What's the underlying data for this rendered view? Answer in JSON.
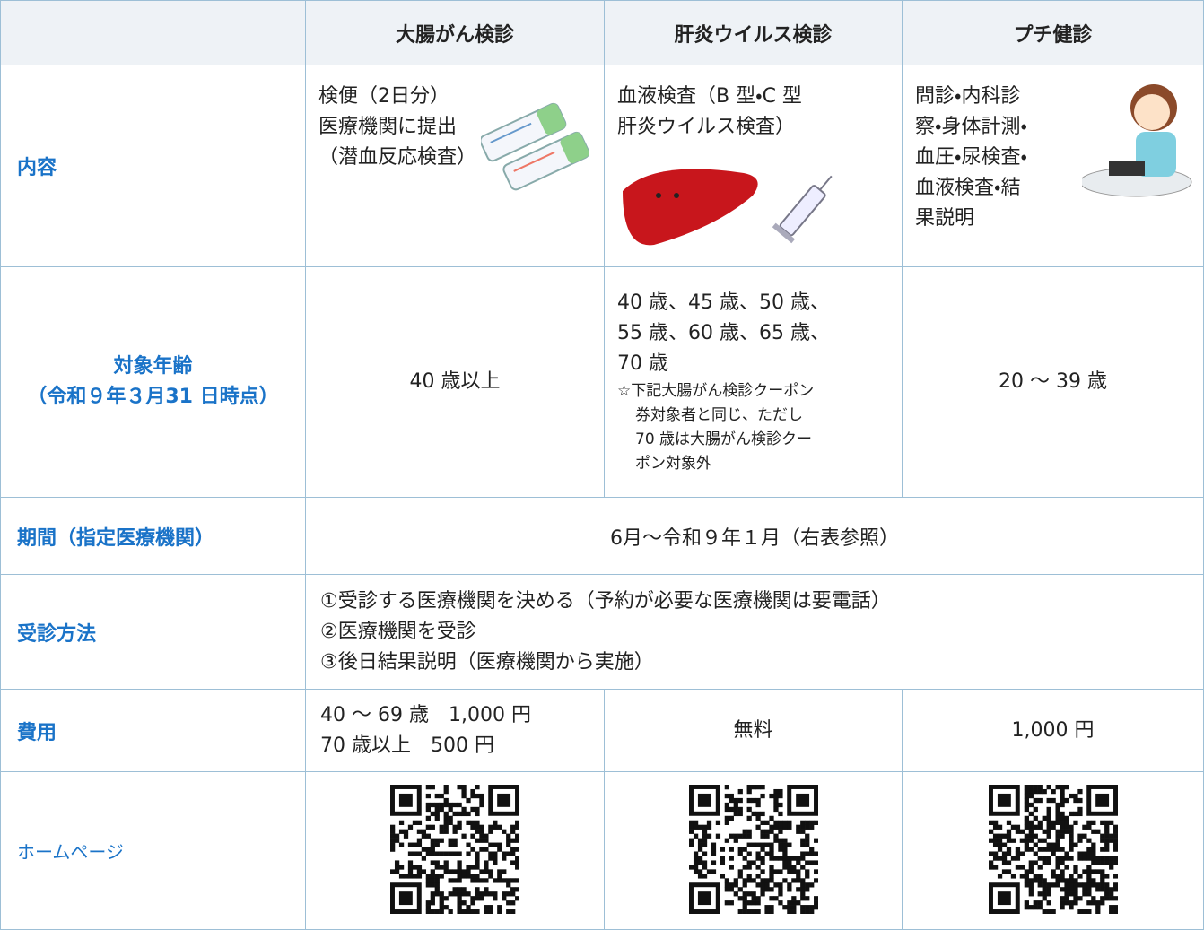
{
  "header": {
    "columns": [
      "大腸がん検診",
      "肝炎ウイルス検診",
      "プチ健診"
    ]
  },
  "rows": {
    "content": {
      "label": "内容",
      "cells": [
        [
          "検便（2日分）",
          "医療機関に提出",
          "（潜血反応検査）"
        ],
        [
          "血液検査（B 型・C 型",
          "肝炎ウイルス検査）"
        ],
        [
          "問診・内科診",
          "察・身体計測・",
          "血圧・尿検査・",
          "血液検査・結",
          "果説明"
        ]
      ]
    },
    "age": {
      "label": [
        "対象年齢",
        "（令和９年３月31 日時点）"
      ],
      "cells": [
        [
          "40 歳以上"
        ],
        [
          "40 歳、45 歳、50 歳、",
          "55 歳、60 歳、65 歳、",
          "70 歳"
        ],
        [
          "20 ～ 39 歳"
        ]
      ],
      "note": [
        "☆下記大腸がん検診クーポン",
        "券対象者と同じ、ただし",
        "70 歳は大腸がん検診クー",
        "ポン対象外"
      ]
    },
    "period": {
      "label": "期間（指定医療機関）",
      "value": "6月～令和９年１月（右表参照）"
    },
    "method": {
      "label": "受診方法",
      "lines": [
        "①受診する医療機関を決める（予約が必要な医療機関は要電話）",
        "②医療機関を受診",
        "③後日結果説明（医療機関から実施）"
      ]
    },
    "cost": {
      "label": "費用",
      "cells": [
        [
          "40 ～ 69 歳　1,000 円",
          "70 歳以上　500 円"
        ],
        [
          "無料"
        ],
        [
          "1,000 円"
        ]
      ]
    },
    "homepage": {
      "label": "ホームページ"
    }
  }
}
